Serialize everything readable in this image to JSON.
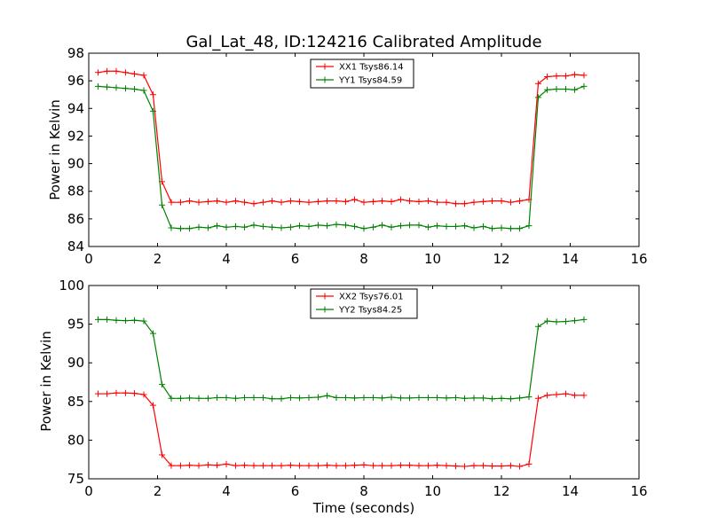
{
  "figure_title": "Gal_Lat_48, ID:124216 Calibrated Amplitude",
  "colors": {
    "xx": "#ff0000",
    "yy": "#008000",
    "axes": "#000000",
    "background": "#ffffff"
  },
  "chart_data": [
    {
      "type": "line",
      "title": "Gal_Lat_48, ID:124216 Calibrated Amplitude",
      "xlabel": "",
      "ylabel": "Power in Kelvin",
      "xlim": [
        0,
        16
      ],
      "ylim": [
        84,
        98
      ],
      "xticks": [
        0,
        2,
        4,
        6,
        8,
        10,
        12,
        14,
        16
      ],
      "yticks": [
        84,
        86,
        88,
        90,
        92,
        94,
        96,
        98
      ],
      "grid": false,
      "legend_position": "top-center",
      "x": [
        0.27,
        0.53,
        0.8,
        1.07,
        1.33,
        1.6,
        1.87,
        2.13,
        2.4,
        2.67,
        2.93,
        3.2,
        3.47,
        3.73,
        4.0,
        4.27,
        4.53,
        4.8,
        5.07,
        5.33,
        5.6,
        5.87,
        6.13,
        6.4,
        6.67,
        6.93,
        7.2,
        7.47,
        7.73,
        8.0,
        8.27,
        8.53,
        8.8,
        9.07,
        9.33,
        9.6,
        9.87,
        10.13,
        10.4,
        10.67,
        10.93,
        11.2,
        11.47,
        11.73,
        12.0,
        12.27,
        12.53,
        12.8,
        13.07,
        13.33,
        13.6,
        13.87,
        14.13,
        14.4
      ],
      "series": [
        {
          "name": "XX1 Tsys86.14",
          "color": "#ff0000",
          "values": [
            96.6,
            96.7,
            96.7,
            96.6,
            96.5,
            96.4,
            95.0,
            88.7,
            87.2,
            87.2,
            87.3,
            87.2,
            87.25,
            87.3,
            87.2,
            87.3,
            87.2,
            87.1,
            87.2,
            87.3,
            87.2,
            87.3,
            87.25,
            87.2,
            87.25,
            87.3,
            87.3,
            87.25,
            87.4,
            87.2,
            87.25,
            87.3,
            87.25,
            87.4,
            87.3,
            87.25,
            87.3,
            87.2,
            87.2,
            87.1,
            87.1,
            87.2,
            87.25,
            87.3,
            87.3,
            87.2,
            87.3,
            87.4,
            95.8,
            96.3,
            96.35,
            96.35,
            96.45,
            96.4
          ],
          "marker": "+"
        },
        {
          "name": "YY1 Tsys84.59",
          "color": "#008000",
          "values": [
            95.6,
            95.55,
            95.5,
            95.45,
            95.4,
            95.3,
            93.8,
            87.0,
            85.35,
            85.3,
            85.3,
            85.4,
            85.35,
            85.5,
            85.4,
            85.45,
            85.4,
            85.55,
            85.45,
            85.4,
            85.35,
            85.4,
            85.5,
            85.45,
            85.55,
            85.5,
            85.6,
            85.55,
            85.45,
            85.3,
            85.4,
            85.55,
            85.4,
            85.5,
            85.55,
            85.55,
            85.4,
            85.5,
            85.45,
            85.45,
            85.5,
            85.35,
            85.45,
            85.3,
            85.35,
            85.3,
            85.3,
            85.5,
            94.8,
            95.35,
            95.4,
            95.4,
            95.35,
            95.6
          ],
          "marker": "+"
        }
      ]
    },
    {
      "type": "line",
      "title": "",
      "xlabel": "Time (seconds)",
      "ylabel": "Power in Kelvin",
      "xlim": [
        0,
        16
      ],
      "ylim": [
        75,
        100
      ],
      "xticks": [
        0,
        2,
        4,
        6,
        8,
        10,
        12,
        14,
        16
      ],
      "yticks": [
        75,
        80,
        85,
        90,
        95,
        100
      ],
      "grid": false,
      "legend_position": "top-center",
      "x": [
        0.27,
        0.53,
        0.8,
        1.07,
        1.33,
        1.6,
        1.87,
        2.13,
        2.4,
        2.67,
        2.93,
        3.2,
        3.47,
        3.73,
        4.0,
        4.27,
        4.53,
        4.8,
        5.07,
        5.33,
        5.6,
        5.87,
        6.13,
        6.4,
        6.67,
        6.93,
        7.2,
        7.47,
        7.73,
        8.0,
        8.27,
        8.53,
        8.8,
        9.07,
        9.33,
        9.6,
        9.87,
        10.13,
        10.4,
        10.67,
        10.93,
        11.2,
        11.47,
        11.73,
        12.0,
        12.27,
        12.53,
        12.8,
        13.07,
        13.33,
        13.6,
        13.87,
        14.13,
        14.4
      ],
      "series": [
        {
          "name": "XX2 Tsys76.01",
          "color": "#ff0000",
          "values": [
            86.0,
            86.0,
            86.1,
            86.1,
            86.05,
            85.9,
            84.5,
            78.1,
            76.7,
            76.7,
            76.75,
            76.7,
            76.8,
            76.75,
            76.9,
            76.7,
            76.75,
            76.7,
            76.7,
            76.7,
            76.7,
            76.75,
            76.7,
            76.7,
            76.7,
            76.75,
            76.7,
            76.7,
            76.75,
            76.8,
            76.7,
            76.7,
            76.7,
            76.75,
            76.75,
            76.7,
            76.7,
            76.75,
            76.7,
            76.65,
            76.6,
            76.7,
            76.7,
            76.65,
            76.65,
            76.7,
            76.6,
            76.9,
            85.4,
            85.8,
            85.9,
            86.0,
            85.8,
            85.8
          ],
          "marker": "+"
        },
        {
          "name": "YY2 Tsys84.25",
          "color": "#008000",
          "values": [
            95.6,
            95.6,
            95.5,
            95.45,
            95.5,
            95.4,
            93.8,
            87.2,
            85.4,
            85.4,
            85.45,
            85.4,
            85.4,
            85.5,
            85.5,
            85.4,
            85.5,
            85.5,
            85.5,
            85.35,
            85.35,
            85.5,
            85.45,
            85.5,
            85.55,
            85.75,
            85.5,
            85.5,
            85.45,
            85.5,
            85.5,
            85.45,
            85.55,
            85.45,
            85.45,
            85.5,
            85.5,
            85.5,
            85.45,
            85.5,
            85.4,
            85.45,
            85.45,
            85.35,
            85.4,
            85.35,
            85.45,
            85.6,
            94.7,
            95.4,
            95.3,
            95.35,
            95.45,
            95.6
          ],
          "marker": "+"
        }
      ]
    }
  ]
}
